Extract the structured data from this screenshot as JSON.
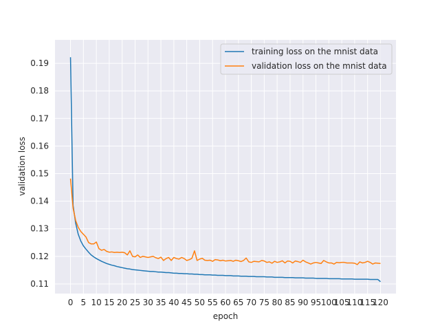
{
  "chart_data": {
    "type": "line",
    "title": "",
    "xlabel": "epoch",
    "ylabel": "validation loss",
    "xlim": [
      -6,
      126
    ],
    "ylim": [
      0.1065,
      0.1985
    ],
    "grid": true,
    "legend_position": "top-right",
    "x_ticks": [
      0,
      5,
      10,
      15,
      20,
      25,
      30,
      35,
      40,
      45,
      50,
      55,
      60,
      65,
      70,
      75,
      80,
      85,
      90,
      95,
      100,
      105,
      110,
      115,
      120
    ],
    "x_tick_labels": [
      "0",
      "5",
      "10",
      "15",
      "20",
      "25",
      "30",
      "35",
      "40",
      "45",
      "50",
      "55",
      "60",
      "65",
      "70",
      "75",
      "80",
      "85",
      "90",
      "95",
      "100",
      "105",
      "110",
      "115",
      "120"
    ],
    "y_ticks": [
      0.11,
      0.12,
      0.13,
      0.14,
      0.15,
      0.16,
      0.17,
      0.18,
      0.19
    ],
    "y_tick_labels": [
      "0.11",
      "0.12",
      "0.13",
      "0.14",
      "0.15",
      "0.16",
      "0.17",
      "0.18",
      "0.19"
    ],
    "series": [
      {
        "name": "training loss on the mnist data",
        "color": "#1f77b4",
        "values": [
          0.1922,
          0.1385,
          0.132,
          0.128,
          0.1255,
          0.1238,
          0.1226,
          0.1215,
          0.1205,
          0.1198,
          0.1192,
          0.1187,
          0.1182,
          0.1178,
          0.1174,
          0.1171,
          0.1168,
          0.1166,
          0.1163,
          0.1161,
          0.1159,
          0.1157,
          0.1155,
          0.1154,
          0.1152,
          0.1151,
          0.115,
          0.1149,
          0.1148,
          0.1147,
          0.1146,
          0.1145,
          0.1145,
          0.1144,
          0.1143,
          0.1143,
          0.1142,
          0.1141,
          0.1141,
          0.114,
          0.1139,
          0.1139,
          0.1138,
          0.1138,
          0.1137,
          0.1137,
          0.1136,
          0.1136,
          0.1135,
          0.1135,
          0.1134,
          0.1134,
          0.1133,
          0.1133,
          0.1133,
          0.1132,
          0.1132,
          0.1131,
          0.1131,
          0.1131,
          0.113,
          0.113,
          0.113,
          0.1129,
          0.1129,
          0.1129,
          0.1128,
          0.1128,
          0.1128,
          0.1127,
          0.1127,
          0.1127,
          0.1126,
          0.1126,
          0.1126,
          0.1126,
          0.1125,
          0.1125,
          0.1125,
          0.1124,
          0.1124,
          0.1124,
          0.1124,
          0.1123,
          0.1123,
          0.1123,
          0.1123,
          0.1122,
          0.1122,
          0.1122,
          0.1122,
          0.1121,
          0.1121,
          0.1121,
          0.1121,
          0.112,
          0.112,
          0.112,
          0.112,
          0.112,
          0.1119,
          0.1119,
          0.1119,
          0.1119,
          0.1119,
          0.1118,
          0.1118,
          0.1118,
          0.1118,
          0.1118,
          0.1117,
          0.1117,
          0.1117,
          0.1117,
          0.1117,
          0.1117,
          0.1116,
          0.1116,
          0.1116,
          0.1116,
          0.1108
        ]
      },
      {
        "name": "validation loss on the mnist data",
        "color": "#ff7f0e",
        "values": [
          0.1482,
          0.1375,
          0.133,
          0.1305,
          0.129,
          0.128,
          0.127,
          0.125,
          0.1245,
          0.1245,
          0.1252,
          0.1228,
          0.1222,
          0.1225,
          0.1218,
          0.1215,
          0.1216,
          0.1214,
          0.1215,
          0.1214,
          0.1215,
          0.1213,
          0.1205,
          0.122,
          0.12,
          0.1198,
          0.1205,
          0.1196,
          0.12,
          0.1198,
          0.1196,
          0.1198,
          0.12,
          0.1195,
          0.1192,
          0.1197,
          0.1185,
          0.1192,
          0.1196,
          0.1185,
          0.1196,
          0.1192,
          0.119,
          0.1196,
          0.1192,
          0.1185,
          0.1188,
          0.1193,
          0.122,
          0.1185,
          0.119,
          0.1193,
          0.1186,
          0.1185,
          0.1186,
          0.1182,
          0.1188,
          0.1187,
          0.1184,
          0.1186,
          0.1183,
          0.1184,
          0.1185,
          0.1182,
          0.1186,
          0.1184,
          0.1181,
          0.1185,
          0.1194,
          0.118,
          0.1178,
          0.1182,
          0.1181,
          0.118,
          0.1185,
          0.1183,
          0.1178,
          0.118,
          0.1175,
          0.1182,
          0.1178,
          0.118,
          0.1184,
          0.1176,
          0.1183,
          0.1182,
          0.1176,
          0.1183,
          0.1181,
          0.1178,
          0.1186,
          0.118,
          0.1176,
          0.1172,
          0.1176,
          0.1178,
          0.1176,
          0.1174,
          0.1185,
          0.118,
          0.1176,
          0.1176,
          0.1172,
          0.1178,
          0.1177,
          0.1178,
          0.1178,
          0.1176,
          0.1176,
          0.1176,
          0.1175,
          0.117,
          0.118,
          0.1176,
          0.1178,
          0.1182,
          0.1178,
          0.1172,
          0.1176,
          0.1175,
          0.1174
        ]
      }
    ]
  }
}
